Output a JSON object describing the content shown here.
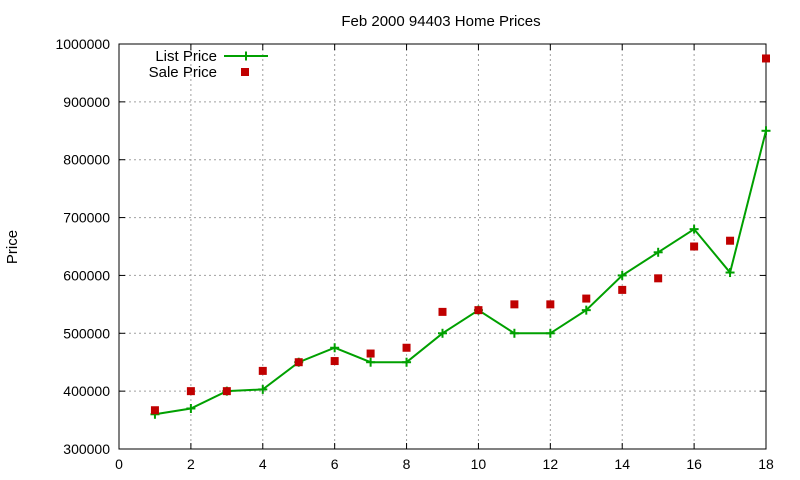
{
  "chart_data": {
    "type": "line",
    "title": "Feb 2000 94403 Home Prices",
    "xlabel": "",
    "ylabel": "Price",
    "xlim": [
      0,
      18
    ],
    "ylim": [
      300000,
      1000000
    ],
    "xticks": [
      0,
      2,
      4,
      6,
      8,
      10,
      12,
      14,
      16,
      18
    ],
    "yticks": [
      300000,
      400000,
      500000,
      600000,
      700000,
      800000,
      900000,
      1000000
    ],
    "xtick_labels": [
      "0",
      "2",
      "4",
      "6",
      "8",
      "10",
      "12",
      "14",
      "16",
      "18"
    ],
    "ytick_labels": [
      "300000",
      "400000",
      "500000",
      "600000",
      "700000",
      "800000",
      "900000",
      "1000000"
    ],
    "grid": true,
    "legend_position": "top-left",
    "series": [
      {
        "name": "List Price",
        "style": "line-with-plus-markers",
        "color": "#00a000",
        "x": [
          1,
          2,
          3,
          4,
          5,
          6,
          7,
          8,
          9,
          10,
          11,
          12,
          13,
          14,
          15,
          16,
          17,
          18
        ],
        "values": [
          360000,
          370000,
          400000,
          403000,
          450000,
          475000,
          450000,
          450000,
          500000,
          540000,
          500000,
          500000,
          540000,
          600000,
          640000,
          680000,
          605000,
          850000
        ]
      },
      {
        "name": "Sale Price",
        "style": "square-markers",
        "color": "#c00000",
        "x": [
          1,
          2,
          3,
          4,
          5,
          6,
          7,
          8,
          9,
          10,
          11,
          12,
          13,
          14,
          15,
          16,
          17,
          18
        ],
        "values": [
          367000,
          400000,
          400000,
          435000,
          450000,
          452000,
          465000,
          475000,
          537000,
          540000,
          550000,
          550000,
          560000,
          575000,
          595000,
          650000,
          660000,
          975000
        ]
      }
    ]
  }
}
